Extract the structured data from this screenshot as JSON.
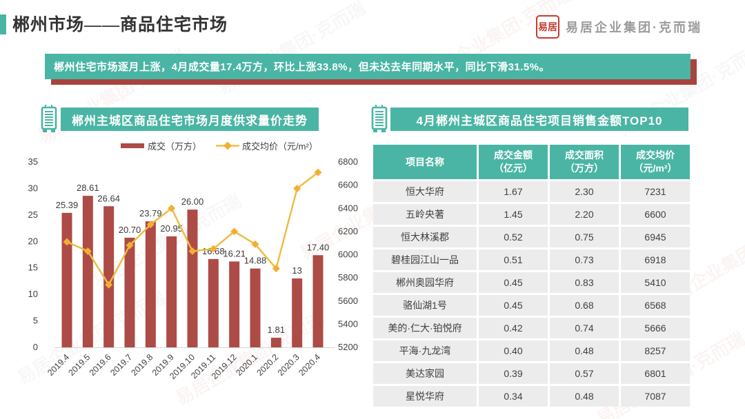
{
  "header": {
    "title": "郴州市场——商品住宅市场"
  },
  "logo": {
    "seal_text": "易居",
    "company": "易居企业集团·克而瑞"
  },
  "banner": {
    "text": "郴州住宅市场逐月上涨，4月成交量17.4万方，环比上涨33.8%，但未达去年同期水平，同比下滑31.5%。"
  },
  "watermark_text": "易居企业集团·克而瑞",
  "colors": {
    "teal": "#4ab5a4",
    "dark_red": "#a8433d",
    "seal_red": "#c53a2e",
    "bar": "#ad4b47",
    "line": "#eebd41",
    "marker": "#f3ae33",
    "axis_text": "#3f3f3f"
  },
  "chart_data": [
    {
      "type": "combo-bar-line",
      "title": "郴州主城区商品住宅市场月度供求量价走势",
      "categories": [
        "2019.4",
        "2019.5",
        "2019.6",
        "2019.7",
        "2019.8",
        "2019.9",
        "2019.10",
        "2019.11",
        "2019.12",
        "2020.1",
        "2020.2",
        "2020.3",
        "2020.4"
      ],
      "series": [
        {
          "name": "成交（万方）",
          "chart": "bar",
          "axis": "left",
          "color": "#ad4b47",
          "values": [
            25.39,
            28.61,
            26.64,
            20.7,
            23.79,
            20.95,
            26.0,
            16.68,
            16.21,
            14.88,
            1.81,
            13,
            17.4
          ],
          "value_labels": [
            "25.39",
            "28.61",
            "26.64",
            "20.70",
            "23.79",
            "20.95",
            "26.00",
            "16.68",
            "16.21",
            "14.88",
            "1.81",
            "13",
            "17.40"
          ]
        },
        {
          "name": "成交均价（元/m²）",
          "chart": "line",
          "axis": "right",
          "color": "#eebd41",
          "marker_color": "#f3ae33",
          "values": [
            6110,
            6030,
            5740,
            6080,
            6260,
            6400,
            6030,
            6050,
            6200,
            6090,
            5880,
            6570,
            6710
          ]
        }
      ],
      "left_axis": {
        "min": 0,
        "max": 35,
        "step": 5
      },
      "right_axis": {
        "min": 5200,
        "max": 6800,
        "step": 200
      },
      "grid": false,
      "legend_position": "top"
    },
    {
      "type": "table",
      "title": "4月郴州主城区商品住宅项目销售金额TOP10",
      "columns": [
        {
          "label": "项目名称",
          "unit": ""
        },
        {
          "label": "成交金额",
          "unit": "（亿元）"
        },
        {
          "label": "成交面积",
          "unit": "（万方）"
        },
        {
          "label": "成交均价",
          "unit": "（元/m²）"
        }
      ],
      "rows": [
        [
          "恒大华府",
          "1.67",
          "2.30",
          "7231"
        ],
        [
          "五岭央著",
          "1.45",
          "2.20",
          "6600"
        ],
        [
          "恒大林溪郡",
          "0.52",
          "0.75",
          "6945"
        ],
        [
          "碧桂园江山一品",
          "0.51",
          "0.73",
          "6918"
        ],
        [
          "郴州奥园华府",
          "0.45",
          "0.83",
          "5410"
        ],
        [
          "骆仙湖1号",
          "0.45",
          "0.68",
          "6568"
        ],
        [
          "美的·仁大·铂悦府",
          "0.42",
          "0.74",
          "5666"
        ],
        [
          "平海·九龙湾",
          "0.40",
          "0.48",
          "8257"
        ],
        [
          "美达家园",
          "0.39",
          "0.57",
          "6801"
        ],
        [
          "星悦华府",
          "0.34",
          "0.48",
          "7087"
        ]
      ]
    }
  ]
}
